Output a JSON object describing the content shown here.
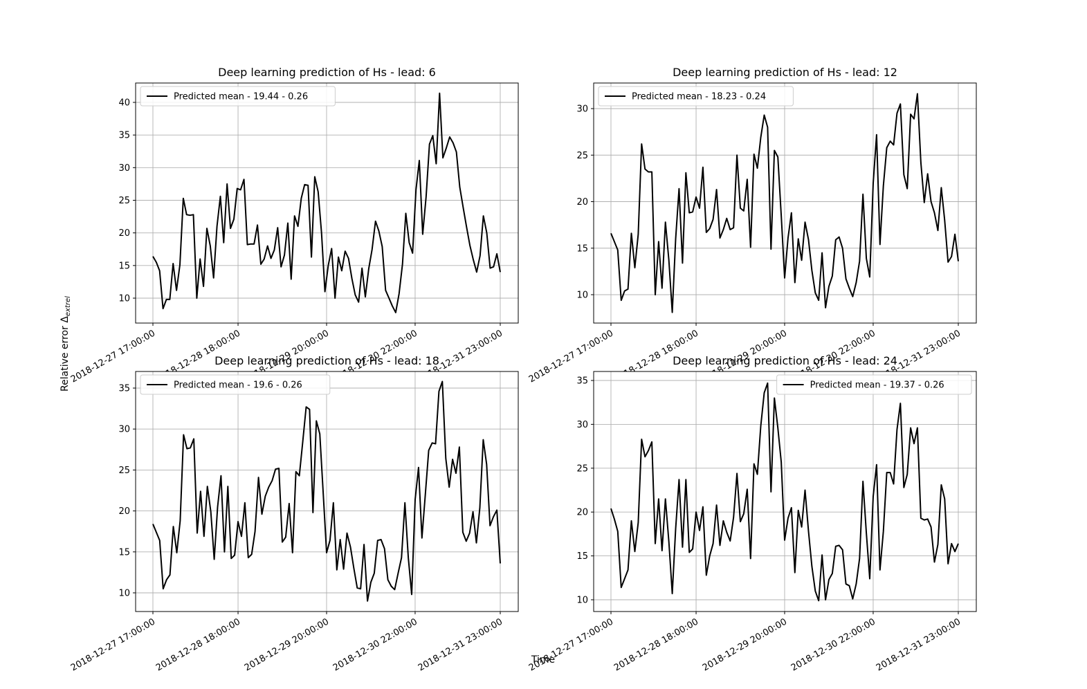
{
  "figure": {
    "ylabel": "Relative error Δ",
    "ylabel_sub": "extrel",
    "xlabel": "Time"
  },
  "chart_data": [
    {
      "type": "line",
      "title": "Deep learning prediction of Hs - lead: 6",
      "x_ticks": [
        "2018-12-27 17:00:00",
        "2018-12-28 18:00:00",
        "2018-12-29 20:00:00",
        "2018-12-30 22:00:00",
        "2018-12-31 23:00:00"
      ],
      "y_ticks": [
        10,
        15,
        20,
        25,
        30,
        35,
        40
      ],
      "ylim": [
        6.2,
        43.0
      ],
      "x_range_hours": [
        0,
        102
      ],
      "legend_position": "upper-left",
      "series": [
        {
          "name": "Predicted mean - 19.44 - 0.26",
          "color": "#000000",
          "values": [
            16.4,
            15.5,
            14.2,
            8.4,
            9.8,
            9.8,
            15.3,
            11.2,
            15.1,
            25.3,
            22.8,
            22.7,
            22.8,
            10.0,
            16.0,
            11.8,
            20.7,
            18.0,
            13.1,
            21.0,
            25.6,
            18.5,
            27.5,
            20.7,
            22.1,
            26.8,
            26.6,
            28.2,
            18.2,
            18.3,
            18.3,
            21.2,
            15.2,
            16.0,
            18.0,
            16.1,
            17.4,
            20.8,
            14.8,
            16.6,
            21.5,
            12.9,
            22.6,
            21.0,
            25.3,
            27.4,
            27.3,
            16.3,
            28.6,
            26.3,
            20.0,
            11.0,
            15.0,
            17.6,
            10.0,
            16.3,
            14.2,
            17.2,
            16.1,
            13.0,
            10.5,
            9.4,
            14.6,
            10.2,
            14.5,
            17.5,
            21.8,
            20.3,
            17.9,
            11.2,
            10.0,
            8.8,
            7.8,
            10.7,
            15.2,
            23.0,
            18.5,
            16.9,
            26.6,
            31.1,
            19.8,
            25.5,
            33.6,
            34.9,
            30.6,
            41.4,
            31.5,
            33.0,
            34.7,
            33.8,
            32.4,
            27.0,
            23.9,
            20.9,
            18.1,
            15.9,
            14.0,
            16.5,
            22.6,
            20.0,
            14.6,
            14.8,
            16.8,
            14.0
          ]
        }
      ]
    },
    {
      "type": "line",
      "title": "Deep learning prediction of Hs - lead: 12",
      "x_ticks": [
        "2018-12-27 17:00:00",
        "2018-12-28 18:00:00",
        "2018-12-29 20:00:00",
        "2018-12-30 22:00:00",
        "2018-12-31 23:00:00"
      ],
      "y_ticks": [
        10,
        15,
        20,
        25,
        30
      ],
      "ylim": [
        7.0,
        32.8
      ],
      "x_range_hours": [
        0,
        102
      ],
      "legend_position": "upper-left",
      "series": [
        {
          "name": "Predicted mean - 18.23 - 0.24",
          "color": "#000000",
          "values": [
            16.6,
            15.7,
            14.8,
            9.4,
            10.4,
            10.6,
            16.6,
            12.9,
            16.5,
            26.2,
            23.5,
            23.2,
            23.2,
            10.0,
            15.7,
            10.7,
            17.8,
            13.7,
            8.1,
            16.0,
            21.4,
            13.4,
            23.1,
            18.8,
            18.9,
            20.5,
            19.3,
            23.7,
            16.7,
            17.1,
            18.1,
            21.3,
            16.1,
            17.0,
            18.2,
            17.0,
            17.2,
            25.0,
            19.3,
            19.0,
            22.4,
            15.1,
            25.1,
            23.6,
            26.9,
            29.3,
            28.0,
            14.9,
            25.5,
            24.8,
            18.5,
            11.8,
            16.1,
            18.8,
            11.3,
            16.0,
            13.7,
            17.8,
            15.9,
            12.6,
            10.2,
            9.4,
            14.5,
            8.6,
            10.9,
            12.0,
            15.9,
            16.2,
            15.0,
            11.7,
            10.7,
            9.8,
            11.3,
            13.6,
            20.8,
            13.9,
            11.9,
            22.0,
            27.2,
            15.4,
            21.7,
            25.8,
            26.5,
            26.1,
            29.5,
            30.5,
            22.9,
            21.4,
            29.4,
            28.9,
            31.6,
            24.2,
            19.9,
            23.0,
            20.0,
            18.8,
            16.9,
            21.5,
            18.0,
            13.5,
            14.1,
            16.5,
            13.6
          ]
        }
      ]
    },
    {
      "type": "line",
      "title": "Deep learning prediction of Hs - lead: 18",
      "x_ticks": [
        "2018-12-27 17:00:00",
        "2018-12-28 18:00:00",
        "2018-12-29 20:00:00",
        "2018-12-30 22:00:00",
        "2018-12-31 23:00:00"
      ],
      "y_ticks": [
        10,
        15,
        20,
        25,
        30,
        35
      ],
      "ylim": [
        7.7,
        37.2
      ],
      "x_range_hours": [
        0,
        102
      ],
      "legend_position": "upper-left",
      "series": [
        {
          "name": "Predicted mean - 19.6 - 0.26",
          "color": "#000000",
          "values": [
            18.4,
            17.4,
            16.4,
            10.5,
            11.6,
            12.2,
            18.1,
            14.9,
            18.8,
            29.3,
            27.6,
            27.7,
            28.8,
            17.3,
            22.4,
            16.9,
            23.0,
            19.9,
            14.1,
            20.5,
            24.3,
            15.0,
            23.0,
            14.2,
            14.6,
            18.7,
            16.9,
            21.0,
            14.3,
            14.7,
            17.5,
            24.1,
            19.6,
            21.8,
            22.9,
            23.7,
            25.1,
            25.2,
            16.2,
            16.8,
            20.9,
            14.9,
            24.8,
            24.3,
            28.4,
            32.7,
            32.4,
            19.8,
            31.0,
            29.4,
            22.2,
            14.9,
            16.4,
            21.0,
            12.8,
            16.5,
            12.9,
            17.3,
            15.6,
            13.0,
            10.6,
            10.5,
            15.9,
            9.0,
            11.3,
            12.4,
            16.4,
            16.5,
            15.4,
            11.6,
            10.8,
            10.4,
            12.4,
            14.3,
            21.0,
            14.3,
            9.8,
            21.4,
            25.3,
            16.7,
            22.0,
            27.4,
            28.3,
            28.2,
            34.6,
            35.8,
            26.4,
            22.9,
            26.3,
            24.6,
            27.8,
            17.4,
            16.3,
            17.3,
            19.9,
            16.1,
            20.4,
            28.7,
            25.7,
            18.2,
            19.3,
            20.1,
            13.6
          ]
        }
      ]
    },
    {
      "type": "line",
      "title": "Deep learning prediction of Hs - lead: 24",
      "x_ticks": [
        "2018-12-27 17:00:00",
        "2018-12-28 18:00:00",
        "2018-12-29 20:00:00",
        "2018-12-30 22:00:00",
        "2018-12-31 23:00:00"
      ],
      "y_ticks": [
        10,
        15,
        20,
        25,
        30,
        35
      ],
      "ylim": [
        8.7,
        35.9
      ],
      "x_range_hours": [
        0,
        102
      ],
      "legend_position": "upper-right",
      "series": [
        {
          "name": "Predicted mean - 19.37 - 0.26",
          "color": "#000000",
          "values": [
            20.4,
            19.2,
            17.8,
            11.4,
            12.4,
            13.4,
            19.0,
            15.5,
            18.8,
            28.3,
            26.3,
            27.0,
            28.0,
            16.4,
            21.5,
            15.6,
            21.5,
            16.6,
            10.7,
            18.1,
            23.7,
            16.0,
            23.7,
            15.4,
            15.8,
            20.0,
            17.9,
            20.6,
            12.8,
            15.0,
            16.4,
            20.8,
            16.2,
            19.0,
            17.7,
            16.7,
            19.4,
            24.4,
            18.9,
            19.8,
            22.6,
            14.7,
            25.5,
            24.3,
            29.8,
            33.6,
            34.7,
            22.3,
            33.0,
            29.6,
            25.7,
            16.8,
            19.3,
            20.5,
            13.1,
            20.2,
            18.3,
            22.5,
            17.8,
            13.8,
            11.0,
            9.9,
            15.1,
            10.0,
            12.3,
            13.0,
            16.1,
            16.2,
            15.7,
            11.8,
            11.6,
            10.1,
            11.8,
            14.7,
            23.5,
            17.6,
            12.4,
            21.8,
            25.4,
            13.4,
            17.8,
            24.5,
            24.5,
            23.2,
            29.4,
            32.4,
            22.8,
            24.3,
            29.6,
            27.8,
            29.6,
            19.3,
            19.1,
            19.2,
            18.3,
            14.3,
            16.3,
            23.1,
            21.5,
            14.1,
            16.4,
            15.5,
            16.4
          ]
        }
      ]
    }
  ]
}
